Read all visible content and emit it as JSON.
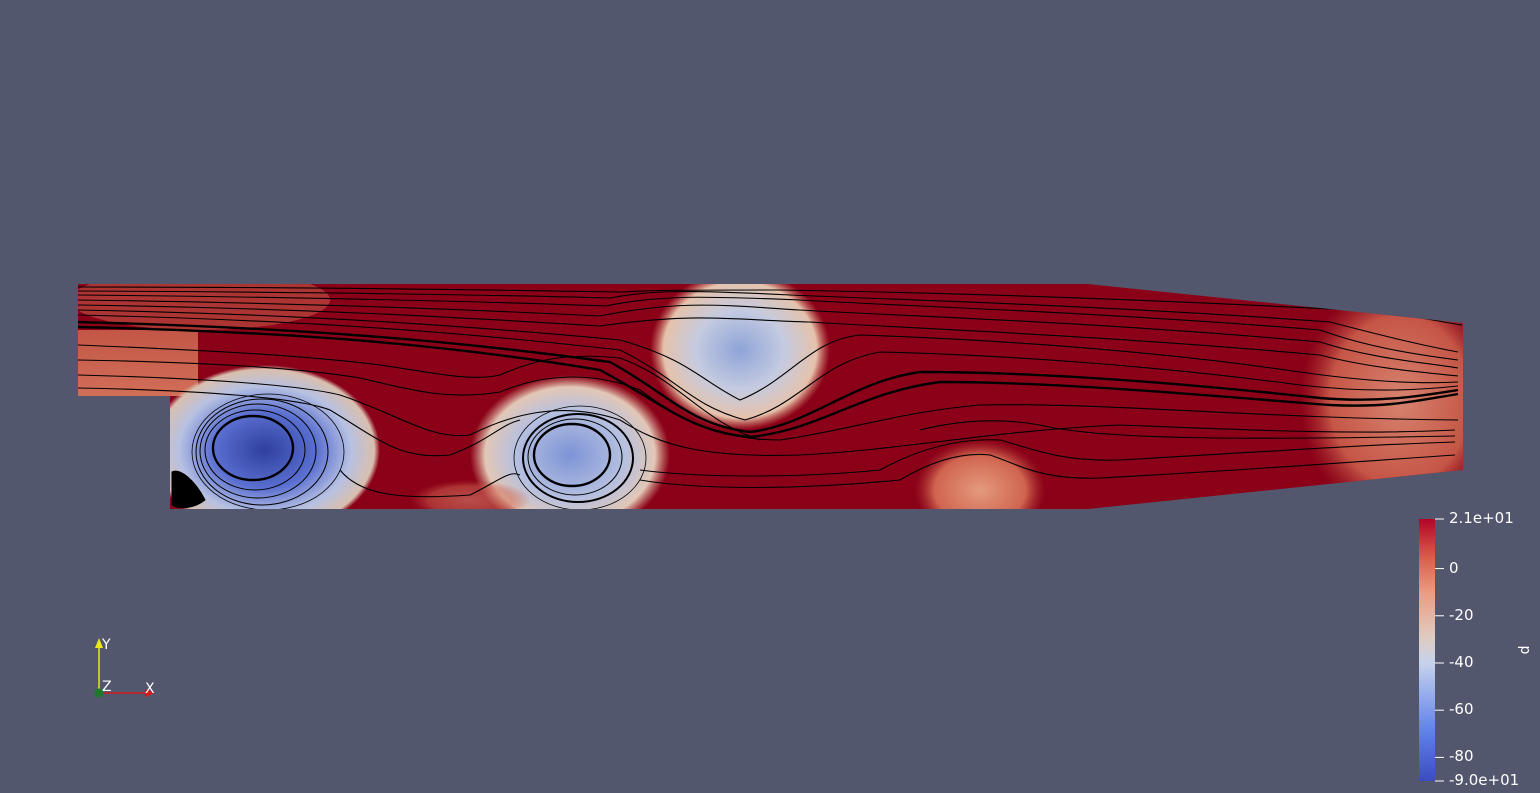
{
  "scene": {
    "background": "#52576e",
    "field_high_color": "#8b0218",
    "field_mid_color": "#d8c9c0",
    "field_low_color": "#3b4cc0",
    "streamline_color": "#000000"
  },
  "colorbar": {
    "title": "p",
    "range": [
      -90,
      21
    ],
    "ticks": [
      {
        "value": 21,
        "label": "2.1e+01"
      },
      {
        "value": 0,
        "label": "0"
      },
      {
        "value": -20,
        "label": "-20"
      },
      {
        "value": -40,
        "label": "-40"
      },
      {
        "value": -60,
        "label": "-60"
      },
      {
        "value": -80,
        "label": "-80"
      },
      {
        "value": -90,
        "label": "-9.0e+01"
      }
    ]
  },
  "orientation_axes": {
    "x_label": "X",
    "y_label": "Y",
    "z_label": "Z",
    "x_color": "#d11a1a",
    "y_color": "#e8e81e",
    "z_color": "#1b7a2a"
  }
}
